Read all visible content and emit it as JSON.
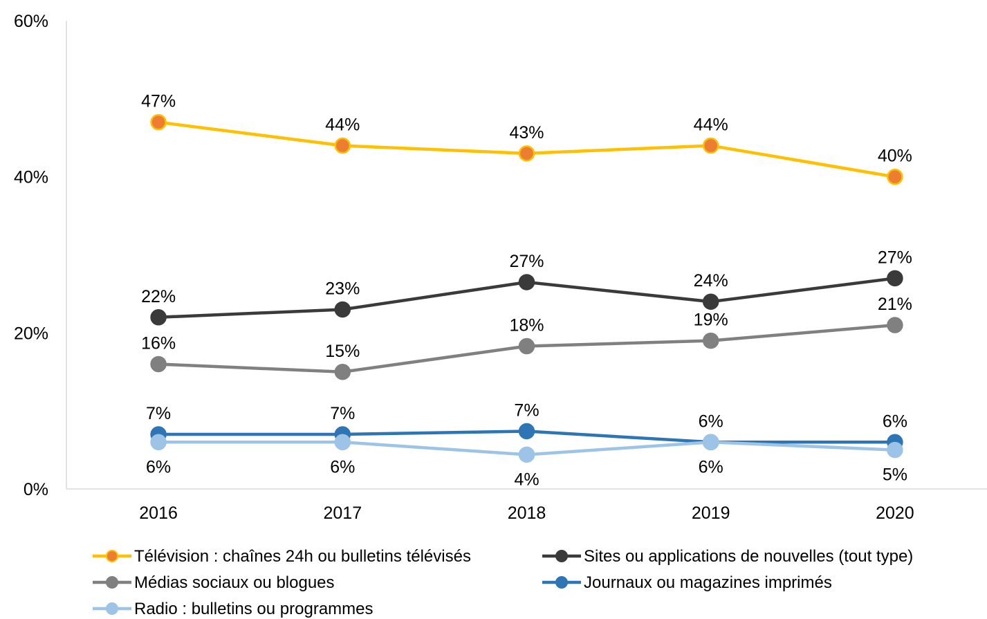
{
  "chart_data": {
    "type": "line",
    "title": "",
    "xlabel": "",
    "ylabel": "",
    "categories": [
      "2016",
      "2017",
      "2018",
      "2019",
      "2020"
    ],
    "ylim": [
      0,
      60
    ],
    "yticks": [
      0,
      20,
      40,
      60
    ],
    "ytick_labels": [
      "0%",
      "20%",
      "40%",
      "60%"
    ],
    "grid": false,
    "legend_position": "bottom",
    "series": [
      {
        "name": "Télévision : chaînes 24h ou bulletins télévisés",
        "values": [
          47,
          44,
          43,
          44,
          40
        ],
        "labels": [
          "47%",
          "44%",
          "43%",
          "44%",
          "40%"
        ],
        "label_position": "above",
        "line_color": "#FFC000",
        "marker_color": "#ED7D31"
      },
      {
        "name": "Sites ou applications de nouvelles (tout type)",
        "values": [
          22,
          23,
          26.5,
          24,
          27
        ],
        "labels": [
          "22%",
          "23%",
          "27%",
          "24%",
          "27%"
        ],
        "label_position": "above",
        "line_color": "#3A3A3A",
        "marker_color": "#3A3A3A"
      },
      {
        "name": "Médias sociaux ou blogues",
        "values": [
          16,
          15,
          18.3,
          19,
          21
        ],
        "labels": [
          "16%",
          "15%",
          "18%",
          "19%",
          "21%"
        ],
        "label_position": "above",
        "line_color": "#808080",
        "marker_color": "#808080"
      },
      {
        "name": "Journaux ou magazines imprimés",
        "values": [
          7,
          7,
          7.4,
          6,
          6
        ],
        "labels": [
          "7%",
          "7%",
          "7%",
          "6%",
          "6%"
        ],
        "label_position": "above",
        "line_color": "#2E75B6",
        "marker_color": "#2E75B6"
      },
      {
        "name": "Radio : bulletins ou programmes",
        "values": [
          6,
          6,
          4.4,
          6,
          5
        ],
        "labels": [
          "6%",
          "6%",
          "4%",
          "6%",
          "5%"
        ],
        "label_position": "below",
        "line_color": "#9DC3E6",
        "marker_color": "#9DC3E6"
      }
    ]
  }
}
